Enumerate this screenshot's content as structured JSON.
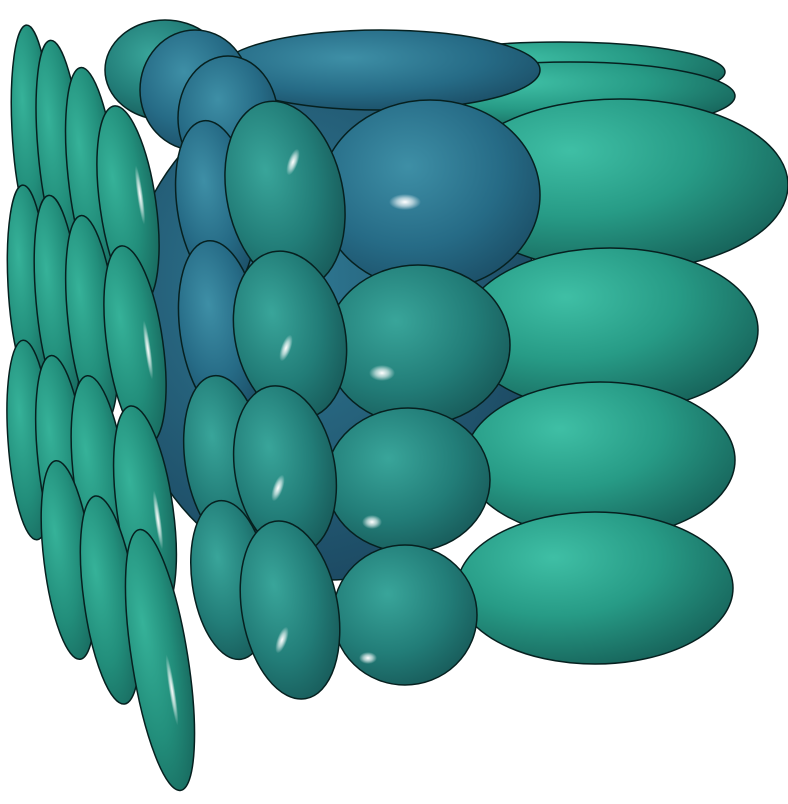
{
  "scene": {
    "background": "#ffffff",
    "palette": {
      "teal_light": "#2a9e88",
      "teal_mid": "#1f8277",
      "teal_dark": "#175e5a",
      "steel_blue": "#2a6a86",
      "blue_dark": "#1d4f6c",
      "outline": "#06201f",
      "highlight": "#ffffff"
    }
  }
}
